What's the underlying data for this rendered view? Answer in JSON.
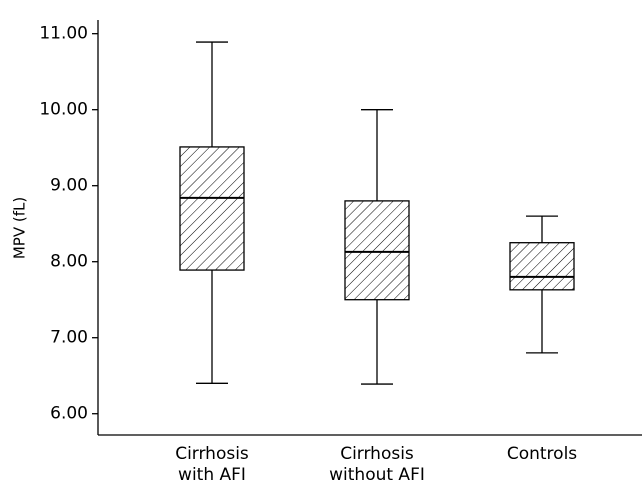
{
  "chart_data": {
    "type": "box",
    "y_label": "MPV (fL)",
    "categories": [
      "Cirrhosis with AFI",
      "Cirrhosis without AFI",
      "Controls"
    ],
    "boxes": [
      {
        "min": 6.4,
        "q1": 7.89,
        "median": 8.84,
        "q3": 9.51,
        "max": 10.89
      },
      {
        "min": 6.39,
        "q1": 7.5,
        "median": 8.13,
        "q3": 8.8,
        "max": 10.0
      },
      {
        "min": 6.8,
        "q1": 7.63,
        "median": 7.8,
        "q3": 8.25,
        "max": 8.6
      }
    ],
    "color": "#000000",
    "hatch": true,
    "ylim": [
      5.72,
      11.18
    ],
    "yticks": [
      {
        "value": 6,
        "label": "6.00"
      },
      {
        "value": 7,
        "label": "7.00"
      },
      {
        "value": 8,
        "label": "8.00"
      },
      {
        "value": 9,
        "label": "9.00"
      },
      {
        "value": 10,
        "label": "10.00"
      },
      {
        "value": 11,
        "label": "11.00"
      }
    ]
  }
}
